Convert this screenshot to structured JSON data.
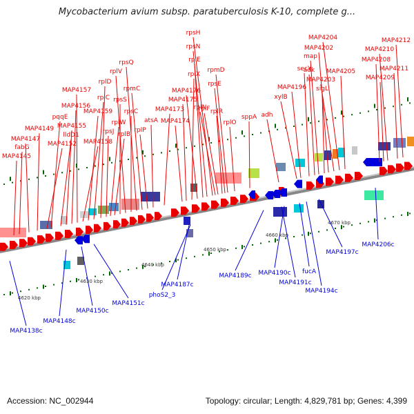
{
  "title": "Mycobacterium avium subsp. paratuberculosis K-10, complete g...",
  "footer": {
    "accession": "Accession: NC_002944",
    "stats": "Topology: circular; Length: 4,829,781 bp; Genes: 4,399"
  },
  "colors": {
    "forward": "#e80000",
    "reverse": "#0000dd",
    "backbone": "#888888",
    "tick": "#006600",
    "rna": "#ff9090"
  },
  "kbp_labels": [
    "4620 kbp",
    "4630 kbp",
    "4640 kbp",
    "4650 kbp",
    "4660 kbp",
    "4670 kbp"
  ],
  "forward_genes": [
    "MAP4145",
    "fabG",
    "MAP4147",
    "MAP4149",
    "MAP4152",
    "pqqE",
    "lldD1",
    "MAP4155",
    "MAP4156",
    "MAP4157",
    "MAP4158",
    "MAP4159",
    "rplC",
    "rplD",
    "rpsJ",
    "rplW",
    "rplB",
    "rpsS",
    "rplV",
    "rpsC",
    "rpsQ",
    "rpmC",
    "rplP",
    "atsA",
    "MAP4173",
    "MAP4174",
    "MAP4175",
    "rplX",
    "MAP4176",
    "rplE",
    "rpsN",
    "rpsH",
    "rplF",
    "rplN",
    "rplR",
    "rpsE",
    "rpmD",
    "rplO",
    "sppA",
    "adh",
    "xylB",
    "MAP4196",
    "secY",
    "adk",
    "map",
    "sigL",
    "MAP4202",
    "MAP4203",
    "MAP4204",
    "MAP4205",
    "MAP4208",
    "MAP4209",
    "MAP4210",
    "MAP4211",
    "MAP4212"
  ],
  "reverse_genes": [
    "MAP4138c",
    "MAP4148c",
    "MAP4150c",
    "MAP4151c",
    "phoS2_3",
    "MAP4187c",
    "MAP4189c",
    "MAP4190c",
    "MAP4191c",
    "fucA",
    "MAP4194c",
    "MAP4197c",
    "MAP4206c"
  ]
}
